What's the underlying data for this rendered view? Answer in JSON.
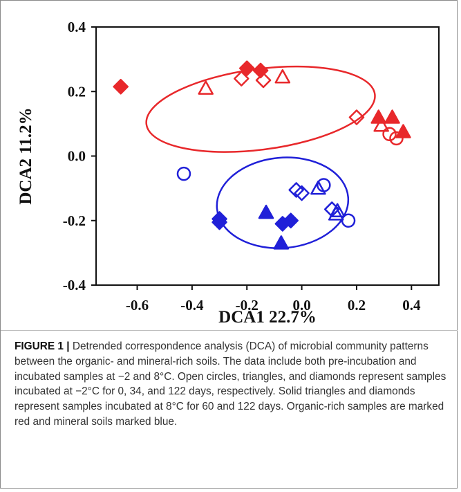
{
  "chart_data": {
    "type": "scatter",
    "xlabel": "DCA1 22.7%",
    "ylabel": "DCA2 11.2%",
    "xlim": [
      -0.75,
      0.5
    ],
    "ylim": [
      -0.4,
      0.4
    ],
    "x_ticks": [
      -0.6,
      -0.4,
      -0.2,
      0.0,
      0.2,
      0.4
    ],
    "x_tick_labels": [
      "-0.6",
      "-0.4",
      "-0.2",
      "0.0",
      "0.2",
      "0.4"
    ],
    "y_ticks": [
      -0.4,
      -0.2,
      0.0,
      0.2,
      0.4
    ],
    "y_tick_labels": [
      "-0.4",
      "-0.2",
      "0.0",
      "0.2",
      "0.4"
    ],
    "grid": false,
    "colors": {
      "organic": "#e8282b",
      "mineral": "#2020d8"
    },
    "ellipses": [
      {
        "group": "organic",
        "color": "#e8282b",
        "center": [
          -0.15,
          0.145
        ],
        "radii": [
          0.84,
          0.125
        ],
        "angle_deg": -7.5
      },
      {
        "group": "mineral",
        "color": "#2020d8",
        "center": [
          -0.07,
          -0.145
        ],
        "radii": [
          0.48,
          0.14
        ],
        "angle_deg": -5
      }
    ],
    "series": [
      {
        "group": "organic",
        "color": "#e8282b",
        "points": [
          {
            "x": -0.66,
            "y": 0.215,
            "shape": "diamond",
            "filled": true
          },
          {
            "x": -0.35,
            "y": 0.21,
            "shape": "triangle",
            "filled": false
          },
          {
            "x": -0.2,
            "y": 0.272,
            "shape": "diamond",
            "filled": true
          },
          {
            "x": -0.15,
            "y": 0.265,
            "shape": "diamond",
            "filled": true
          },
          {
            "x": -0.22,
            "y": 0.24,
            "shape": "diamond",
            "filled": false
          },
          {
            "x": -0.14,
            "y": 0.235,
            "shape": "diamond",
            "filled": false
          },
          {
            "x": -0.07,
            "y": 0.245,
            "shape": "triangle",
            "filled": false
          },
          {
            "x": 0.2,
            "y": 0.12,
            "shape": "diamond",
            "filled": false
          },
          {
            "x": 0.28,
            "y": 0.12,
            "shape": "triangle",
            "filled": true
          },
          {
            "x": 0.33,
            "y": 0.12,
            "shape": "triangle",
            "filled": true
          },
          {
            "x": 0.29,
            "y": 0.095,
            "shape": "triangle",
            "filled": false
          },
          {
            "x": 0.32,
            "y": 0.068,
            "shape": "circle",
            "filled": false
          },
          {
            "x": 0.345,
            "y": 0.055,
            "shape": "circle",
            "filled": false
          },
          {
            "x": 0.37,
            "y": 0.075,
            "shape": "triangle",
            "filled": true
          }
        ]
      },
      {
        "group": "mineral",
        "color": "#2020d8",
        "points": [
          {
            "x": -0.43,
            "y": -0.055,
            "shape": "circle",
            "filled": false
          },
          {
            "x": -0.3,
            "y": -0.195,
            "shape": "diamond",
            "filled": true
          },
          {
            "x": -0.3,
            "y": -0.205,
            "shape": "diamond",
            "filled": true
          },
          {
            "x": -0.13,
            "y": -0.175,
            "shape": "triangle",
            "filled": true
          },
          {
            "x": -0.07,
            "y": -0.21,
            "shape": "diamond",
            "filled": true
          },
          {
            "x": -0.04,
            "y": -0.2,
            "shape": "diamond",
            "filled": true
          },
          {
            "x": -0.075,
            "y": -0.27,
            "shape": "triangle",
            "filled": true
          },
          {
            "x": -0.02,
            "y": -0.105,
            "shape": "diamond",
            "filled": false
          },
          {
            "x": 0.0,
            "y": -0.115,
            "shape": "diamond",
            "filled": false
          },
          {
            "x": 0.08,
            "y": -0.09,
            "shape": "circle",
            "filled": false
          },
          {
            "x": 0.06,
            "y": -0.1,
            "shape": "triangle",
            "filled": false
          },
          {
            "x": 0.11,
            "y": -0.165,
            "shape": "diamond",
            "filled": false
          },
          {
            "x": 0.13,
            "y": -0.17,
            "shape": "triangle",
            "filled": false
          },
          {
            "x": 0.125,
            "y": -0.18,
            "shape": "triangle",
            "filled": false
          },
          {
            "x": 0.17,
            "y": -0.2,
            "shape": "circle",
            "filled": false
          }
        ]
      }
    ]
  },
  "caption": {
    "label": "FIGURE 1 |",
    "text": " Detrended correspondence analysis (DCA) of microbial community patterns between the organic- and mineral-rich soils. The data include both pre-incubation and incubated samples at −2 and 8°C. Open circles, triangles, and diamonds represent samples incubated at −2°C for 0, 34, and 122 days, respectively. Solid triangles and diamonds represent samples incubated at 8°C for 60 and 122 days. Organic-rich samples are marked red and mineral soils marked blue."
  }
}
